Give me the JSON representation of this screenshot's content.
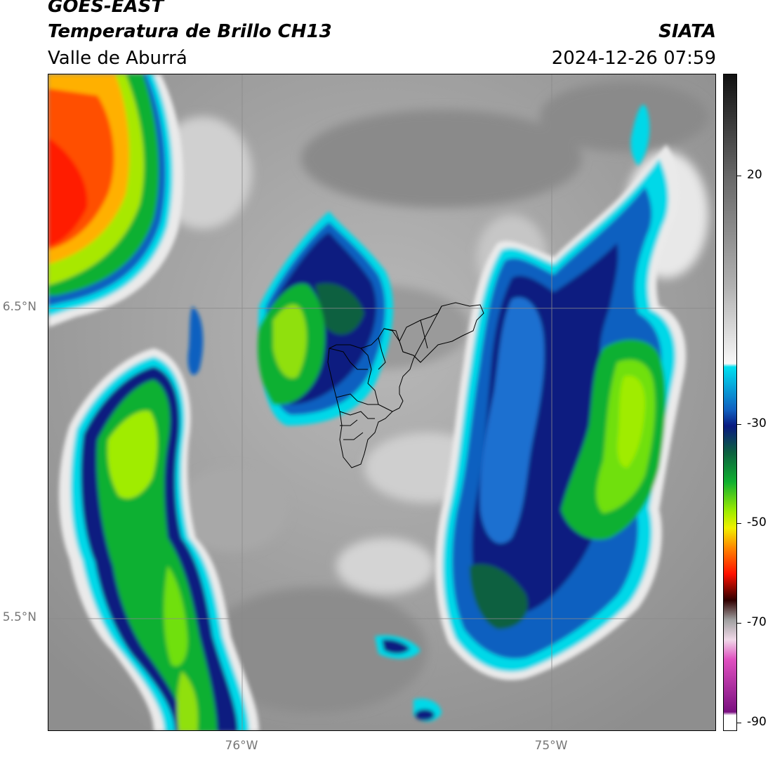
{
  "header": {
    "satellite": "GOES-EAST",
    "product": "Temperatura de Brillo CH13",
    "region": "Valle de Aburrá",
    "organization": "SIATA",
    "timestamp": "2024-12-26 07:59"
  },
  "map": {
    "lat_labels": [
      "6.5°N",
      "5.5°N"
    ],
    "lon_labels": [
      "76°W",
      "75°W"
    ],
    "gridlines": true,
    "boundary_overlay": "Valle de Aburrá municipalities"
  },
  "colorbar": {
    "ticks": [
      "20",
      "-30",
      "-50",
      "-70",
      "-90"
    ],
    "colors": {
      "warm_gray_top": "#111111",
      "cold_cyan": "#00d8e8",
      "blue": "#1060c0",
      "dark_blue": "#0a1a80",
      "green": "#10b030",
      "yellow": "#f0f000",
      "orange": "#ff8800",
      "red": "#ff1000",
      "dark_red": "#300000",
      "magenta": "#e050c0",
      "purple": "#7a1080",
      "white": "#ffffff"
    }
  }
}
